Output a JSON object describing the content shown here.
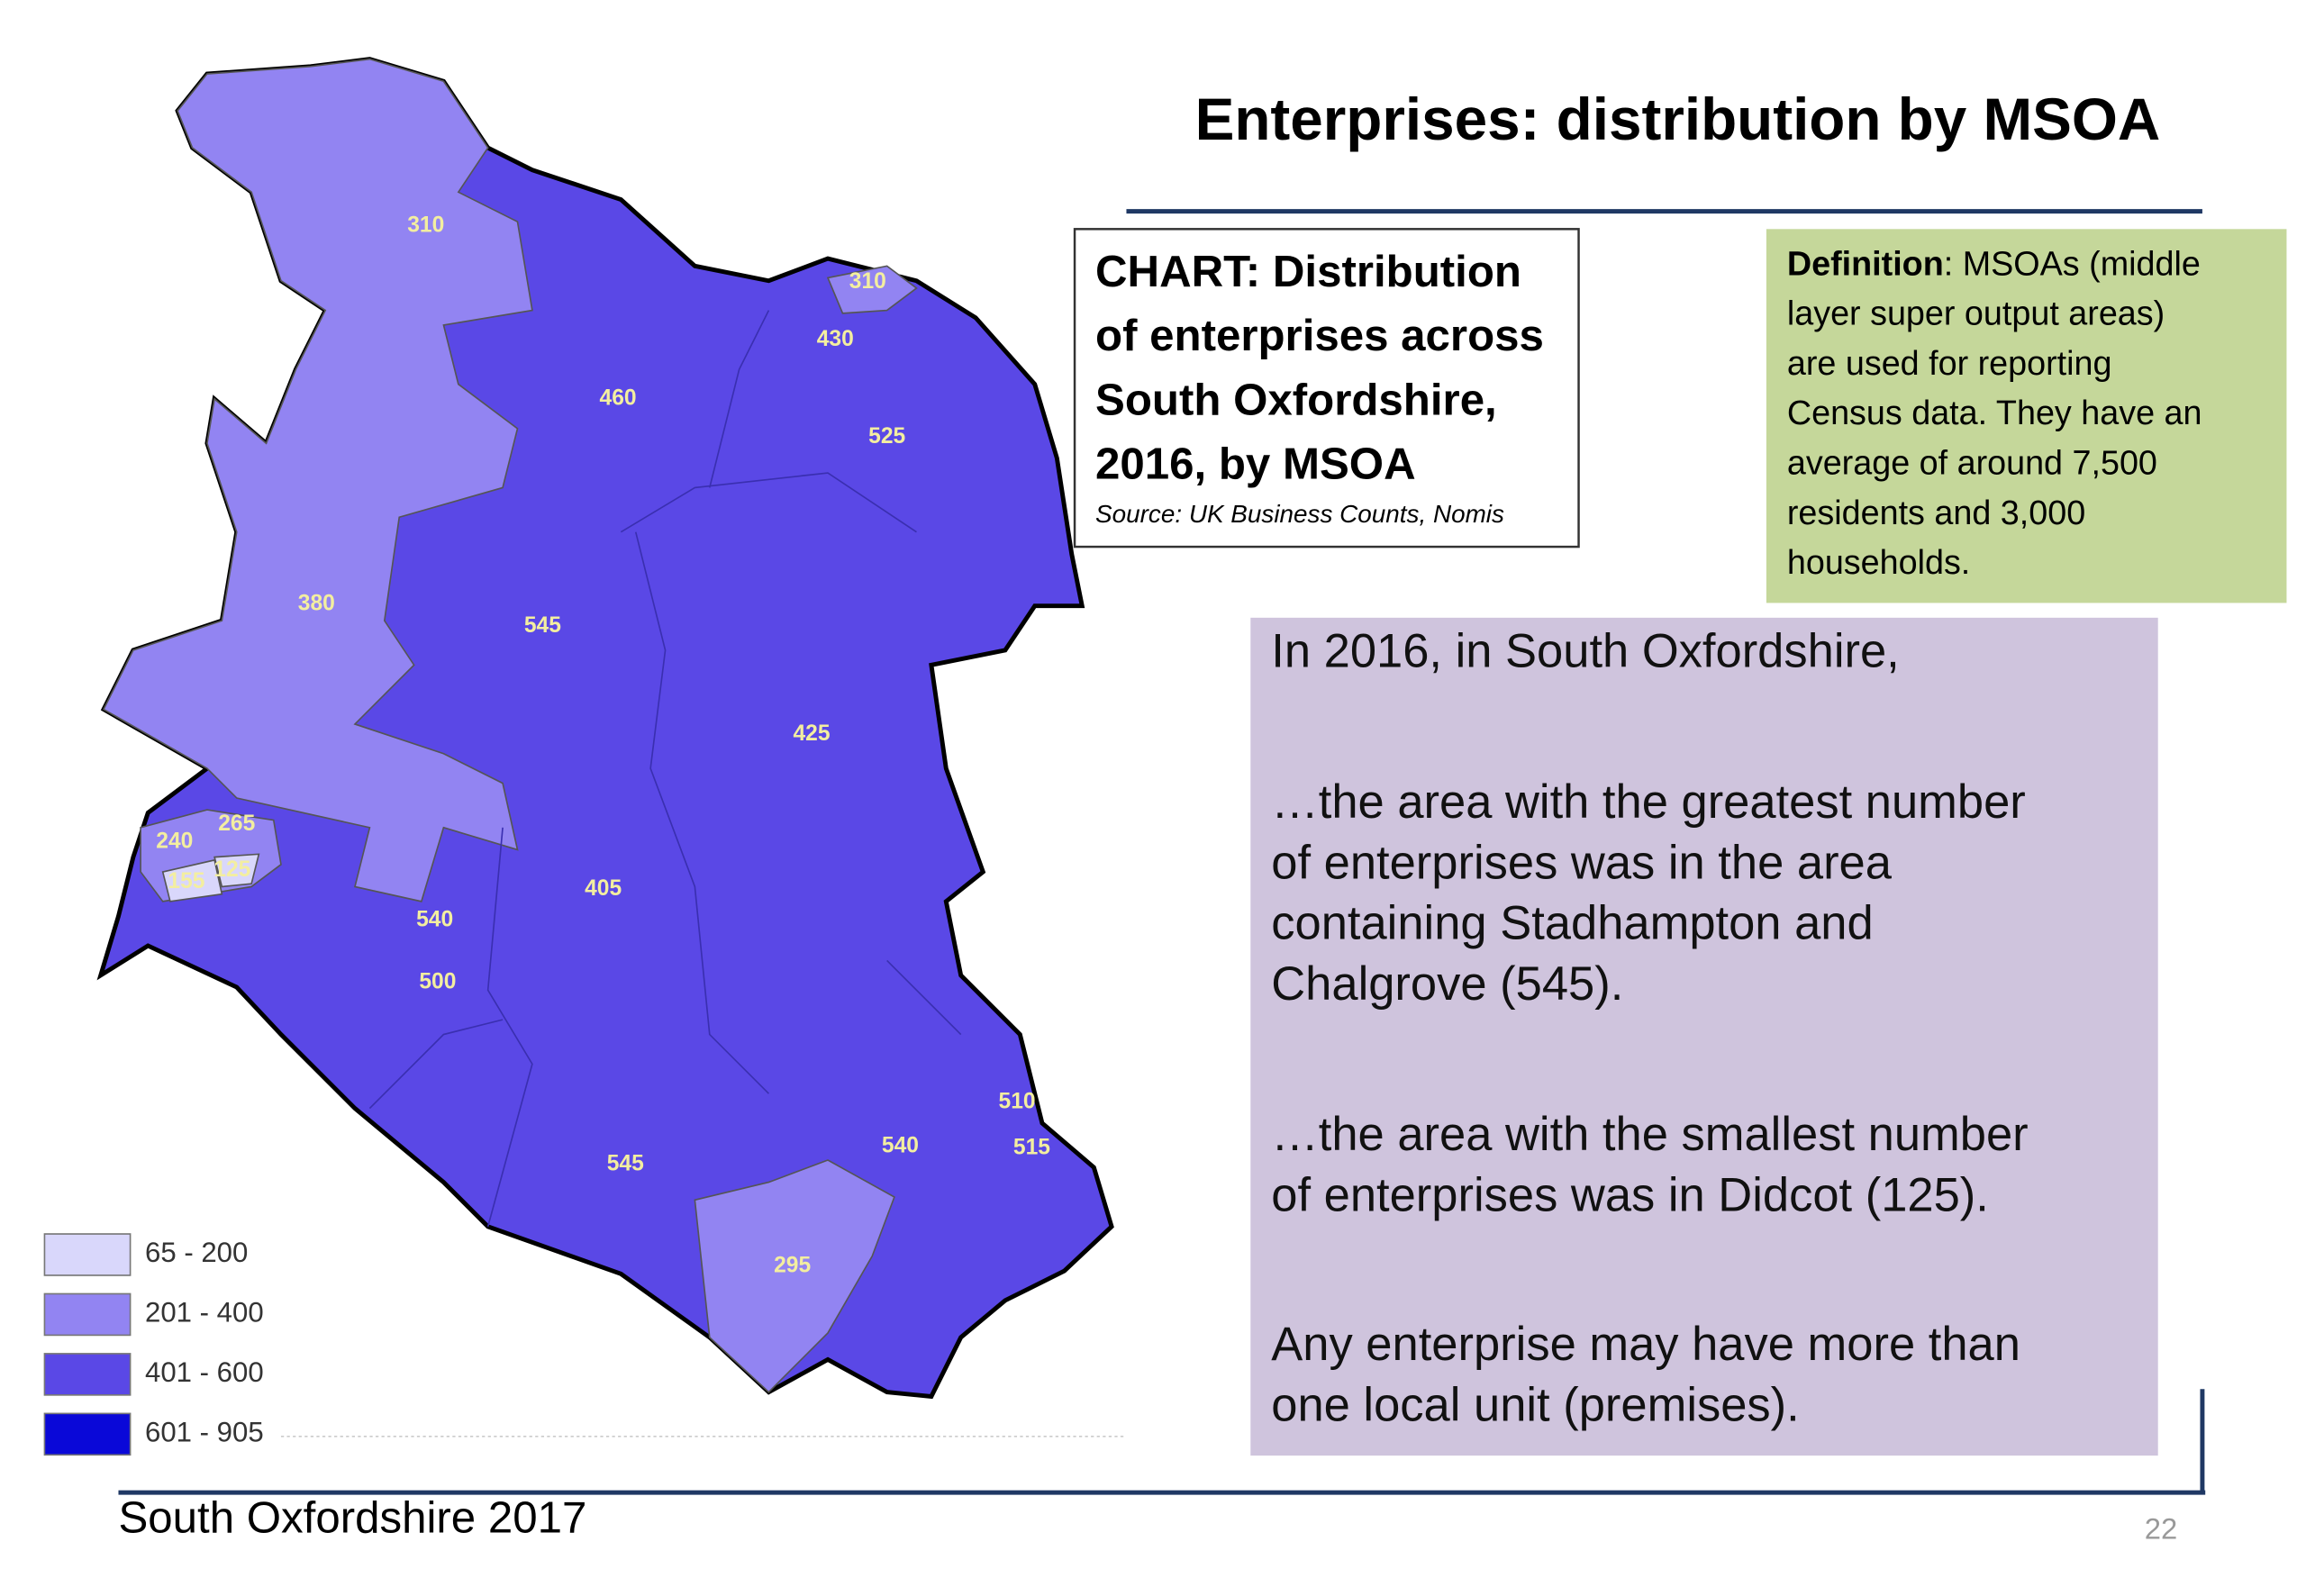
{
  "title": "Enterprises: distribution by MSOA",
  "chart_box": {
    "lines": [
      "CHART: Distribution",
      "of enterprises across",
      "South Oxfordshire,",
      "2016, by MSOA"
    ],
    "source": "Source: UK Business Counts, Nomis"
  },
  "definition": {
    "label": "Definition",
    "lines": [
      ": MSOAs (middle",
      "layer super output areas)",
      "are used for reporting",
      "Census data.  They have an",
      "average of around 7,500",
      "residents and 3,000",
      "households."
    ]
  },
  "summary": {
    "paragraphs": [
      [
        "In 2016, in South Oxfordshire,"
      ],
      [
        "…the area with the greatest number",
        "of enterprises was in the area",
        "containing Stadhampton and",
        "Chalgrove (545)."
      ],
      [
        "…the area with the smallest number",
        "of enterprises was in Didcot (125)."
      ],
      [
        "Any enterprise may have more than",
        "one local unit (premises)."
      ]
    ]
  },
  "map": {
    "labels": [
      310,
      310,
      430,
      460,
      525,
      380,
      545,
      425,
      265,
      240,
      125,
      155,
      540,
      405,
      500,
      510,
      515,
      540,
      545,
      295
    ]
  },
  "legend": [
    {
      "label": "65 - 200",
      "color": "#d9d7fb"
    },
    {
      "label": "201 - 400",
      "color": "#9284f2"
    },
    {
      "label": "401 - 600",
      "color": "#5a48e6"
    },
    {
      "label": "601 - 905",
      "color": "#0a08d8"
    }
  ],
  "footer": {
    "text": "South Oxfordshire  2017",
    "page": "22"
  }
}
